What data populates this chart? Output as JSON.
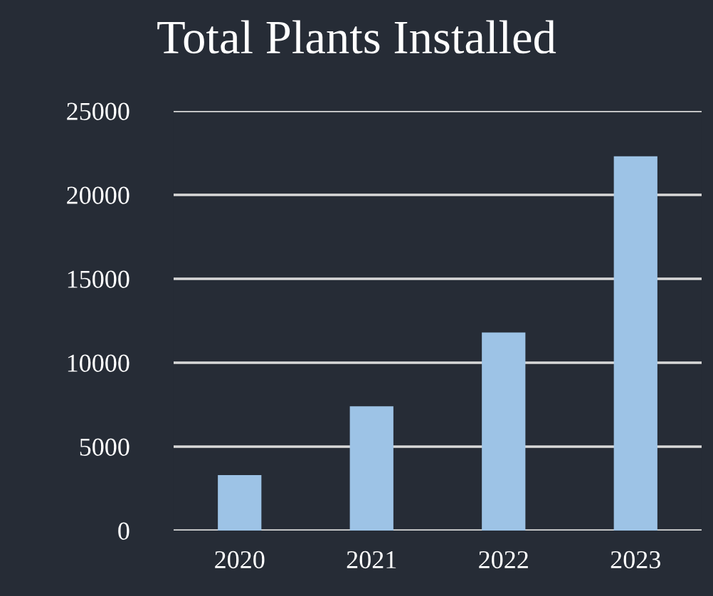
{
  "chart_data": {
    "type": "bar",
    "title": "Total Plants Installed",
    "categories": [
      "2020",
      "2021",
      "2022",
      "2023"
    ],
    "values": [
      3300,
      7400,
      11800,
      22300
    ],
    "color": "#9dc3e6",
    "ylim": [
      0,
      25000
    ],
    "yticks": [
      0,
      5000,
      10000,
      15000,
      20000,
      25000
    ],
    "grid": "y"
  }
}
